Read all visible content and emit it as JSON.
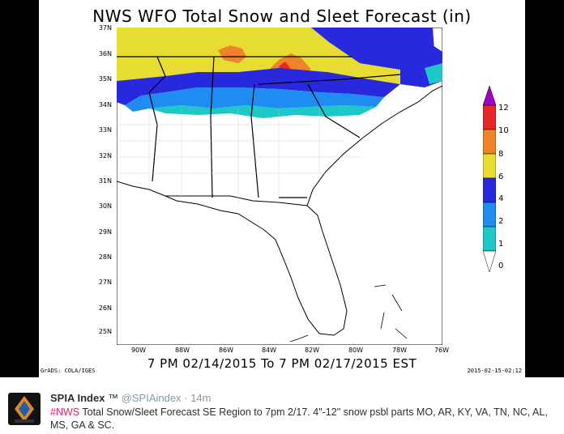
{
  "map": {
    "title": "NWS WFO Total Snow and Sleet Forecast (in)",
    "subtitle": "7 PM 02/14/2015 To 7 PM 02/17/2015 EST",
    "grads_label": "GrADS: COLA/IGES",
    "timestamp": "2015-02-15-02:12",
    "lat_labels": [
      "37N",
      "36N",
      "35N",
      "34N",
      "33N",
      "32N",
      "31N",
      "30N",
      "29N",
      "28N",
      "27N",
      "26N",
      "25N"
    ],
    "lon_labels": [
      "90W",
      "88W",
      "86W",
      "84W",
      "82W",
      "80W",
      "78W",
      "76W"
    ]
  },
  "legend": {
    "labels": [
      "12",
      "10",
      "8",
      "6",
      "4",
      "2",
      "1",
      "0"
    ],
    "colors": [
      "#a000c8",
      "#e62828",
      "#f08228",
      "#e6dc32",
      "#2828dc",
      "#1e8cf0",
      "#1ec8c8"
    ]
  },
  "tweet": {
    "name": "SPIA Index",
    "tm": "™",
    "handle": "@SPIAindex",
    "sep": "·",
    "time": "14m",
    "hashtag": "#NWS",
    "text": " Total Snow/Sleet Forecast SE Region to 7pm 2/17. 4\"-12\" snow psbl parts MO, AR, KY, VA, TN, NC, AL, MS, GA & SC."
  }
}
